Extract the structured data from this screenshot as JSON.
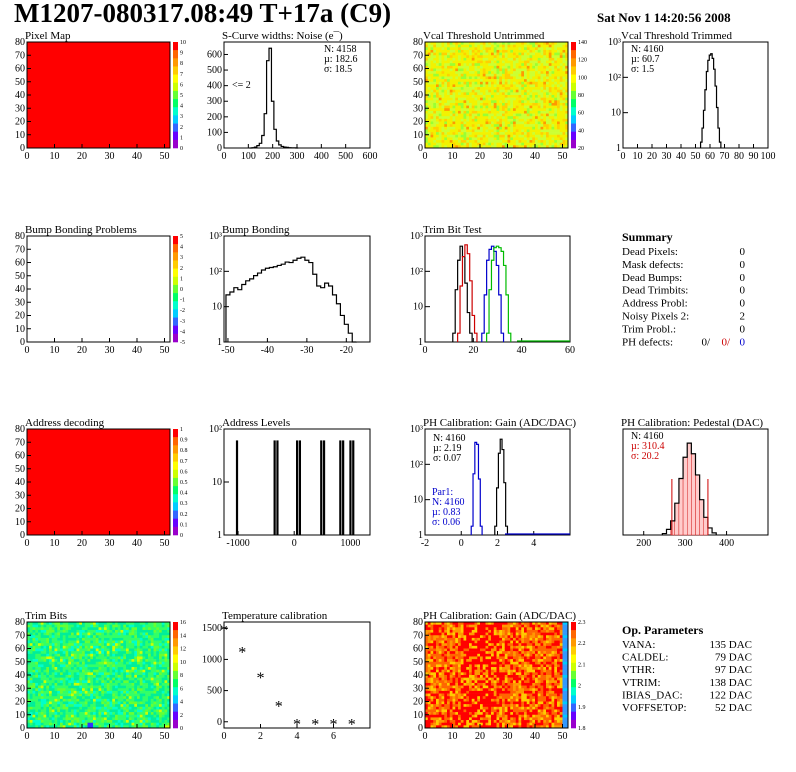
{
  "header": {
    "title": "M1207-080317.08:49 T+17a (C9)",
    "timestamp": "Sat Nov  1 14:20:56 2008"
  },
  "colors": {
    "black": "#000000",
    "red": "#cc0000",
    "blue": "#0000cc",
    "green": "#00bb00"
  },
  "chart_data": [
    {
      "id": "pixel_map",
      "type": "heatmap",
      "title": "Pixel Map",
      "x_ticks": [
        0,
        10,
        20,
        30,
        40,
        50
      ],
      "y_ticks": [
        0,
        10,
        20,
        30,
        40,
        50,
        60,
        70,
        80
      ],
      "xlim": [
        0,
        52
      ],
      "ylim": [
        0,
        80
      ],
      "fill": "uniform red",
      "zscale_labels": [
        "0",
        "1",
        "2",
        "3",
        "4",
        "5",
        "6",
        "7",
        "8",
        "9",
        "10"
      ]
    },
    {
      "id": "scurve",
      "type": "line",
      "title": "S-Curve widths: Noise (e¯)",
      "x_ticks": [
        0,
        100,
        200,
        300,
        400,
        500,
        600
      ],
      "y_ticks": [
        0,
        100,
        200,
        300,
        400,
        500,
        600
      ],
      "xlim": [
        0,
        600
      ],
      "ylim": [
        0,
        680
      ],
      "stats": [
        "N: 4158",
        "µ: 182.6",
        "σ: 18.5"
      ],
      "annotation": "<= 2",
      "x": [
        110,
        120,
        130,
        140,
        150,
        160,
        170,
        180,
        190,
        200,
        210,
        220,
        230,
        240,
        250,
        260,
        270,
        280,
        290,
        300
      ],
      "values": [
        0,
        2,
        6,
        15,
        30,
        80,
        220,
        560,
        640,
        300,
        120,
        45,
        20,
        10,
        6,
        4,
        2,
        1,
        1,
        0
      ]
    },
    {
      "id": "vcal_untrimmed",
      "type": "heatmap",
      "title": "Vcal Threshold Untrimmed",
      "x_ticks": [
        0,
        10,
        20,
        30,
        40,
        50
      ],
      "y_ticks": [
        0,
        10,
        20,
        30,
        40,
        50,
        60,
        70,
        80
      ],
      "xlim": [
        0,
        52
      ],
      "ylim": [
        0,
        80
      ],
      "fill": "noisy yellow-green",
      "zscale_labels": [
        "20",
        "40",
        "60",
        "80",
        "100",
        "120",
        "140"
      ]
    },
    {
      "id": "vcal_trimmed",
      "type": "line",
      "title": "Vcal Threshold Trimmed",
      "x_ticks": [
        0,
        10,
        20,
        30,
        40,
        50,
        60,
        70,
        80,
        90,
        100
      ],
      "y_ticks_log": [
        "1",
        "10",
        "10²",
        "10³"
      ],
      "log_y": true,
      "stats": [
        "N: 4160",
        "µ: 60.7",
        "σ:  1.5"
      ],
      "x": [
        54,
        55,
        56,
        57,
        58,
        59,
        60,
        61,
        62,
        63,
        64,
        65,
        66,
        67
      ],
      "values": [
        1,
        3,
        12,
        60,
        250,
        600,
        900,
        1000,
        700,
        300,
        80,
        15,
        3,
        1
      ]
    },
    {
      "id": "bump_problems",
      "type": "heatmap",
      "title": "Bump Bonding Problems",
      "x_ticks": [
        0,
        10,
        20,
        30,
        40,
        50
      ],
      "y_ticks": [
        0,
        10,
        20,
        30,
        40,
        50,
        60,
        70,
        80
      ],
      "xlim": [
        0,
        52
      ],
      "ylim": [
        0,
        80
      ],
      "fill": "empty",
      "zscale_labels": [
        "-5",
        "-4",
        "-3",
        "-2",
        "-1",
        "0",
        "1",
        "2",
        "3",
        "4",
        "5"
      ]
    },
    {
      "id": "bump_bonding",
      "type": "line",
      "title": "Bump Bonding",
      "x_ticks": [
        -50,
        -40,
        -30,
        -20
      ],
      "y_ticks_log": [
        "1",
        "10",
        "10²",
        "10³"
      ],
      "log_y": true,
      "x": [
        -50,
        -49,
        -48,
        -47,
        -46,
        -45,
        -44,
        -43,
        -42,
        -41,
        -40,
        -39,
        -38,
        -37,
        -36,
        -35,
        -34,
        -33,
        -32,
        -31,
        -30,
        -29,
        -28,
        -27,
        -26,
        -25,
        -24,
        -23,
        -22,
        -21,
        -20,
        -19,
        -18
      ],
      "values": [
        20,
        25,
        35,
        30,
        45,
        60,
        70,
        90,
        110,
        140,
        160,
        170,
        180,
        200,
        220,
        260,
        250,
        300,
        350,
        380,
        300,
        250,
        100,
        40,
        35,
        50,
        40,
        20,
        10,
        4,
        2,
        1,
        0.5
      ]
    },
    {
      "id": "trim_bit_test",
      "type": "line",
      "title": "Trim Bit Test",
      "x_ticks": [
        0,
        20,
        40,
        60
      ],
      "y_ticks_log": [
        "1",
        "10",
        "10²",
        "10³"
      ],
      "log_y": true,
      "series": [
        {
          "color": "black",
          "x": [
            12,
            13,
            14,
            15,
            16,
            17,
            18,
            19
          ],
          "values": [
            1,
            30,
            300,
            900,
            400,
            50,
            5,
            1
          ]
        },
        {
          "color": "red",
          "x": [
            14,
            15,
            16,
            17,
            18,
            19,
            20,
            21
          ],
          "values": [
            1,
            40,
            400,
            1000,
            500,
            60,
            4,
            1
          ]
        },
        {
          "color": "blue",
          "x": [
            24,
            25,
            26,
            27,
            28,
            29,
            30,
            31,
            32
          ],
          "values": [
            1,
            20,
            300,
            700,
            900,
            600,
            200,
            20,
            1
          ]
        },
        {
          "color": "green",
          "x": [
            26,
            27,
            28,
            29,
            30,
            31,
            32,
            33,
            34,
            35
          ],
          "values": [
            1,
            30,
            300,
            800,
            900,
            800,
            600,
            200,
            20,
            1
          ]
        }
      ]
    },
    {
      "id": "summary",
      "type": "table",
      "title": "Summary",
      "rows": [
        {
          "label": "Dead Pixels:",
          "value": "0"
        },
        {
          "label": "Mask defects:",
          "value": "0"
        },
        {
          "label": "Dead Bumps:",
          "value": "0"
        },
        {
          "label": "Dead Trimbits:",
          "value": "0"
        },
        {
          "label": "Address Probl:",
          "value": "0"
        },
        {
          "label": "Noisy Pixels 2:",
          "value": "2"
        },
        {
          "label": "Trim Probl.:",
          "value": "0"
        }
      ],
      "ph_defects": {
        "label": "PH defects:",
        "v1": "0/",
        "v2": "0/",
        "v3": "0"
      }
    },
    {
      "id": "address_decoding",
      "type": "heatmap",
      "title": "Address decoding",
      "x_ticks": [
        0,
        10,
        20,
        30,
        40,
        50
      ],
      "y_ticks": [
        0,
        10,
        20,
        30,
        40,
        50,
        60,
        70,
        80
      ],
      "xlim": [
        0,
        52
      ],
      "ylim": [
        0,
        80
      ],
      "fill": "uniform red",
      "zscale_labels": [
        "0",
        "0.1",
        "0.2",
        "0.3",
        "0.4",
        "0.5",
        "0.6",
        "0.7",
        "0.8",
        "0.9",
        "1"
      ]
    },
    {
      "id": "address_levels",
      "type": "bar",
      "title": "Address Levels",
      "x_ticks": [
        -1000,
        0,
        1000
      ],
      "y_ticks_log": [
        "1",
        "10",
        "10²"
      ],
      "log_y": true,
      "x": [
        -1020,
        -350,
        -300,
        50,
        100,
        480,
        530,
        820,
        870,
        1000,
        1050
      ],
      "values": [
        300,
        300,
        300,
        300,
        300,
        300,
        300,
        300,
        300,
        300,
        300
      ]
    },
    {
      "id": "ph_gain",
      "type": "line",
      "title": "PH Calibration: Gain (ADC/DAC)",
      "x_ticks": [
        -2,
        0,
        2,
        4
      ],
      "y_ticks_log": [
        "1",
        "10",
        "10²",
        "10³"
      ],
      "log_y": true,
      "stats": [
        "N: 4160",
        "µ: 2.19",
        "σ: 0.07"
      ],
      "par1": [
        "Par1:",
        "N: 4160",
        "µ: 0.83",
        "σ: 0.06"
      ],
      "series": [
        {
          "color": "black",
          "x": [
            1.9,
            2.0,
            2.1,
            2.2,
            2.3,
            2.4,
            2.5
          ],
          "values": [
            1,
            20,
            300,
            900,
            400,
            30,
            1
          ]
        },
        {
          "color": "blue",
          "x": [
            0.6,
            0.7,
            0.8,
            0.9,
            1.0,
            1.1
          ],
          "values": [
            1,
            60,
            700,
            600,
            40,
            1
          ]
        }
      ]
    },
    {
      "id": "ph_pedestal",
      "type": "line",
      "title": "PH Calibration: Pedestal (DAC)",
      "x_ticks": [
        200,
        300,
        400
      ],
      "stats": [
        "N: 4160",
        "µ: 310.4",
        "σ: 20.2"
      ],
      "x": [
        250,
        260,
        270,
        280,
        290,
        300,
        310,
        320,
        330,
        340,
        350,
        360,
        370
      ],
      "values": [
        2,
        8,
        20,
        45,
        80,
        110,
        130,
        115,
        85,
        50,
        25,
        10,
        3
      ]
    },
    {
      "id": "trim_bits",
      "type": "heatmap",
      "title": "Trim Bits",
      "x_ticks": [
        0,
        10,
        20,
        30,
        40,
        50
      ],
      "y_ticks": [
        0,
        10,
        20,
        30,
        40,
        50,
        60,
        70,
        80
      ],
      "xlim": [
        0,
        52
      ],
      "ylim": [
        0,
        80
      ],
      "fill": "noisy green",
      "zscale_labels": [
        "0",
        "2",
        "4",
        "6",
        "8",
        "10",
        "12",
        "14",
        "16"
      ]
    },
    {
      "id": "temperature",
      "type": "scatter",
      "title": "Temperature calibration",
      "x_ticks": [
        0,
        2,
        4,
        6
      ],
      "y_ticks": [
        0,
        500,
        1000,
        1500
      ],
      "xlim": [
        0,
        8
      ],
      "ylim": [
        -100,
        1600
      ],
      "x": [
        0,
        1,
        2,
        3,
        4,
        5,
        6,
        7
      ],
      "values": [
        1480,
        1130,
        720,
        260,
        -30,
        -30,
        -30,
        -30
      ]
    },
    {
      "id": "ph_gain_map",
      "type": "heatmap",
      "title": "PH Calibration: Gain (ADC/DAC)",
      "x_ticks": [
        0,
        10,
        20,
        30,
        40,
        50
      ],
      "y_ticks": [
        0,
        10,
        20,
        30,
        40,
        50,
        60,
        70,
        80
      ],
      "xlim": [
        0,
        52
      ],
      "ylim": [
        0,
        80
      ],
      "fill": "noisy red-orange",
      "zscale_labels": [
        "1.8",
        "1.9",
        "2",
        "2.1",
        "2.2",
        "2.3"
      ]
    },
    {
      "id": "op_parameters",
      "type": "table",
      "title": "Op. Parameters",
      "rows": [
        {
          "label": "VANA:",
          "value": "135 DAC"
        },
        {
          "label": "CALDEL:",
          "value": "79 DAC"
        },
        {
          "label": "VTHR:",
          "value": "97 DAC"
        },
        {
          "label": "VTRIM:",
          "value": "138 DAC"
        },
        {
          "label": "IBIAS_DAC:",
          "value": "122 DAC"
        },
        {
          "label": "VOFFSETOP:",
          "value": "52 DAC"
        }
      ]
    }
  ]
}
